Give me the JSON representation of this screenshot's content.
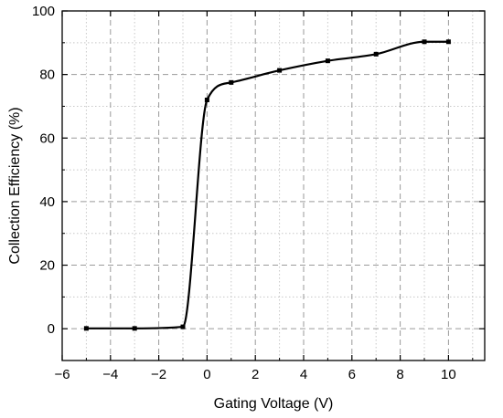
{
  "chart_data": {
    "type": "line",
    "title": "",
    "xlabel": "Gating Voltage (V)",
    "ylabel": "Collection Efficiency (%)",
    "xlim": [
      -6,
      11.5
    ],
    "ylim": [
      -10,
      100
    ],
    "x_ticks": [
      -6,
      -4,
      -2,
      0,
      2,
      4,
      6,
      8,
      10
    ],
    "x_tick_labels": [
      "−6",
      "−4",
      "−2",
      "0",
      "2",
      "4",
      "6",
      "8",
      "10"
    ],
    "y_ticks": [
      0,
      20,
      40,
      60,
      80,
      100
    ],
    "y_tick_labels": [
      "0",
      "20",
      "40",
      "60",
      "80",
      "100"
    ],
    "grid": true,
    "legend": false,
    "series": [
      {
        "color": "#000000",
        "marker": "square",
        "x": [
          -5,
          -3,
          -1,
          0,
          1,
          3,
          5,
          7,
          9,
          10
        ],
        "y": [
          0.1,
          0.1,
          0.6,
          72.0,
          77.5,
          81.3,
          84.3,
          86.4,
          90.3,
          90.3
        ]
      }
    ]
  }
}
